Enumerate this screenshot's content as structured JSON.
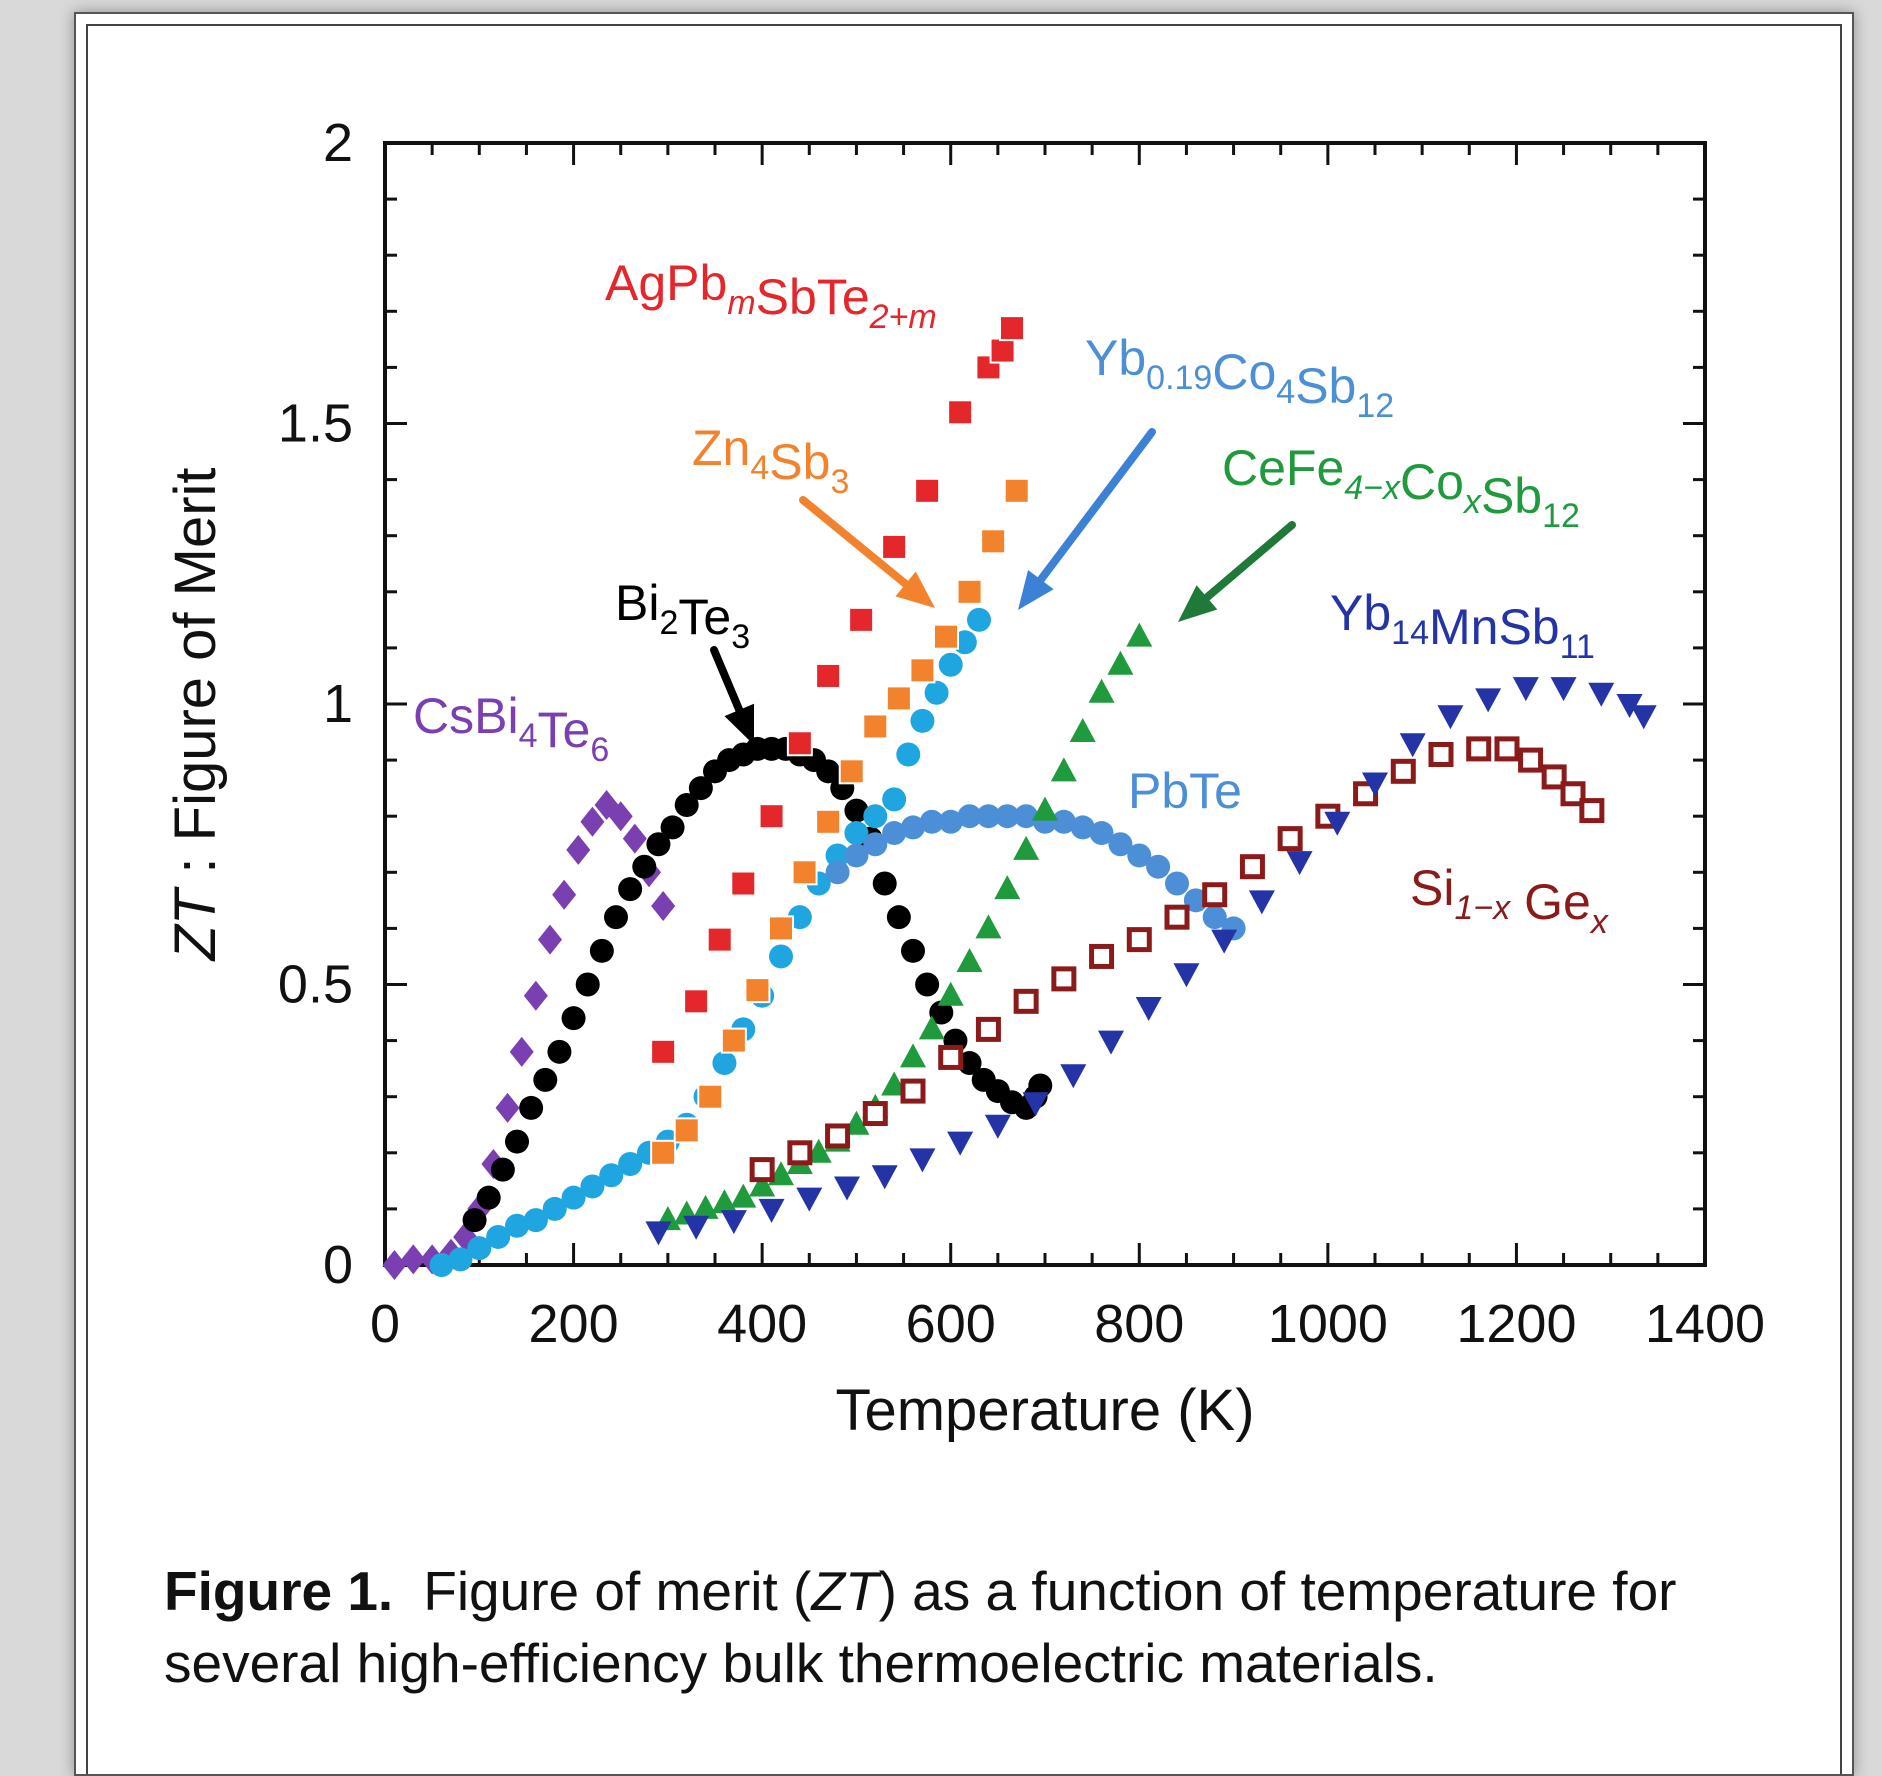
{
  "caption": {
    "label": "Figure 1.",
    "text_before": "Figure of merit (",
    "italic": "ZT",
    "text_after": ") as a function of temperature for several high-efficiency bulk thermoelectric materials."
  },
  "chart_data": {
    "type": "scatter",
    "xlabel": "Temperature (K)",
    "ylabel_italic": "ZT",
    "ylabel_rest": " : Figure of Merit",
    "xlim": [
      0,
      1400
    ],
    "ylim": [
      0,
      2
    ],
    "xticks": [
      "0",
      "200",
      "400",
      "600",
      "800",
      "1000",
      "1200",
      "1400"
    ],
    "yticks": [
      "0",
      "0.5",
      "1",
      "1.5",
      "2"
    ],
    "grid": false,
    "series": [
      {
        "color": "#7a3fb0",
        "marker": "diamond",
        "label_parts": [
          [
            "CsBi",
            ""
          ],
          [
            "4",
            "sub"
          ],
          [
            "Te",
            ""
          ],
          [
            "6",
            "sub"
          ]
        ],
        "points": [
          [
            10,
            0
          ],
          [
            30,
            0.01
          ],
          [
            50,
            0.01
          ],
          [
            70,
            0.02
          ],
          [
            85,
            0.05
          ],
          [
            100,
            0.1
          ],
          [
            115,
            0.18
          ],
          [
            130,
            0.28
          ],
          [
            145,
            0.38
          ],
          [
            160,
            0.48
          ],
          [
            175,
            0.58
          ],
          [
            190,
            0.66
          ],
          [
            205,
            0.74
          ],
          [
            220,
            0.79
          ],
          [
            235,
            0.82
          ],
          [
            250,
            0.8
          ],
          [
            265,
            0.76
          ],
          [
            280,
            0.7
          ],
          [
            295,
            0.64
          ]
        ]
      },
      {
        "color": "#000000",
        "marker": "circle",
        "label_parts": [
          [
            "Bi",
            ""
          ],
          [
            "2",
            "sub"
          ],
          [
            "Te",
            ""
          ],
          [
            "3",
            "sub"
          ]
        ],
        "points": [
          [
            95,
            0.08
          ],
          [
            110,
            0.12
          ],
          [
            125,
            0.17
          ],
          [
            140,
            0.22
          ],
          [
            155,
            0.28
          ],
          [
            170,
            0.33
          ],
          [
            185,
            0.38
          ],
          [
            200,
            0.44
          ],
          [
            215,
            0.5
          ],
          [
            230,
            0.56
          ],
          [
            245,
            0.62
          ],
          [
            260,
            0.67
          ],
          [
            275,
            0.71
          ],
          [
            290,
            0.75
          ],
          [
            305,
            0.78
          ],
          [
            320,
            0.82
          ],
          [
            335,
            0.85
          ],
          [
            350,
            0.88
          ],
          [
            365,
            0.9
          ],
          [
            380,
            0.91
          ],
          [
            395,
            0.92
          ],
          [
            410,
            0.92
          ],
          [
            425,
            0.92
          ],
          [
            440,
            0.91
          ],
          [
            455,
            0.9
          ],
          [
            470,
            0.88
          ],
          [
            485,
            0.85
          ],
          [
            500,
            0.81
          ],
          [
            515,
            0.76
          ],
          [
            530,
            0.68
          ],
          [
            545,
            0.62
          ],
          [
            560,
            0.56
          ],
          [
            575,
            0.5
          ],
          [
            590,
            0.45
          ],
          [
            605,
            0.4
          ],
          [
            620,
            0.36
          ],
          [
            635,
            0.33
          ],
          [
            650,
            0.31
          ],
          [
            665,
            0.29
          ],
          [
            680,
            0.28
          ],
          [
            690,
            0.3
          ],
          [
            695,
            0.32
          ]
        ]
      },
      {
        "color": "#1fa5e0",
        "marker": "circle",
        "label_parts": [],
        "points": [
          [
            60,
            0
          ],
          [
            80,
            0.01
          ],
          [
            100,
            0.03
          ],
          [
            120,
            0.05
          ],
          [
            140,
            0.07
          ],
          [
            160,
            0.08
          ],
          [
            180,
            0.1
          ],
          [
            200,
            0.12
          ],
          [
            220,
            0.14
          ],
          [
            240,
            0.16
          ],
          [
            260,
            0.18
          ],
          [
            280,
            0.2
          ],
          [
            300,
            0.22
          ],
          [
            320,
            0.25
          ],
          [
            340,
            0.3
          ],
          [
            360,
            0.36
          ],
          [
            380,
            0.42
          ],
          [
            400,
            0.48
          ],
          [
            420,
            0.55
          ],
          [
            440,
            0.62
          ],
          [
            460,
            0.68
          ],
          [
            480,
            0.73
          ],
          [
            500,
            0.77
          ],
          [
            520,
            0.8
          ],
          [
            540,
            0.83
          ],
          [
            555,
            0.91
          ],
          [
            570,
            0.97
          ],
          [
            585,
            1.02
          ],
          [
            600,
            1.07
          ],
          [
            615,
            1.11
          ],
          [
            630,
            1.15
          ]
        ]
      },
      {
        "color": "#e3272a",
        "marker": "square",
        "label_parts": [
          [
            "AgPb",
            ""
          ],
          [
            "m",
            "subi"
          ],
          [
            "SbTe",
            ""
          ],
          [
            "2+m",
            "subi"
          ]
        ],
        "points": [
          [
            295,
            0.38
          ],
          [
            330,
            0.47
          ],
          [
            355,
            0.58
          ],
          [
            380,
            0.68
          ],
          [
            410,
            0.8
          ],
          [
            440,
            0.93
          ],
          [
            470,
            1.05
          ],
          [
            505,
            1.15
          ],
          [
            540,
            1.28
          ],
          [
            575,
            1.38
          ],
          [
            610,
            1.52
          ],
          [
            640,
            1.6
          ],
          [
            655,
            1.63
          ],
          [
            665,
            1.67
          ]
        ]
      },
      {
        "color": "#f2822c",
        "marker": "square",
        "label_parts": [
          [
            "Zn",
            ""
          ],
          [
            "4",
            "sub"
          ],
          [
            "Sb",
            ""
          ],
          [
            "3",
            "sub"
          ]
        ],
        "points": [
          [
            295,
            0.2
          ],
          [
            320,
            0.24
          ],
          [
            345,
            0.3
          ],
          [
            370,
            0.4
          ],
          [
            395,
            0.49
          ],
          [
            420,
            0.6
          ],
          [
            445,
            0.7
          ],
          [
            470,
            0.79
          ],
          [
            495,
            0.88
          ],
          [
            520,
            0.96
          ],
          [
            545,
            1.01
          ],
          [
            570,
            1.06
          ],
          [
            595,
            1.12
          ],
          [
            620,
            1.2
          ],
          [
            645,
            1.29
          ],
          [
            670,
            1.38
          ]
        ]
      },
      {
        "color": "#4c8fd6",
        "marker": "circle",
        "label_parts": [
          [
            "PbTe",
            ""
          ]
        ],
        "points": [
          [
            480,
            0.7
          ],
          [
            500,
            0.73
          ],
          [
            520,
            0.75
          ],
          [
            540,
            0.77
          ],
          [
            560,
            0.78
          ],
          [
            580,
            0.79
          ],
          [
            600,
            0.79
          ],
          [
            620,
            0.8
          ],
          [
            640,
            0.8
          ],
          [
            660,
            0.8
          ],
          [
            680,
            0.8
          ],
          [
            700,
            0.79
          ],
          [
            720,
            0.79
          ],
          [
            740,
            0.78
          ],
          [
            760,
            0.77
          ],
          [
            780,
            0.75
          ],
          [
            800,
            0.73
          ],
          [
            820,
            0.71
          ],
          [
            840,
            0.68
          ],
          [
            860,
            0.65
          ],
          [
            880,
            0.62
          ],
          [
            900,
            0.6
          ]
        ]
      },
      {
        "color": "#1f9a3d",
        "marker": "triangle-up",
        "label_parts": [
          [
            "CeFe",
            ""
          ],
          [
            "4−x",
            "subi"
          ],
          [
            "Co",
            ""
          ],
          [
            "x",
            "subi"
          ],
          [
            "Sb",
            ""
          ],
          [
            "12",
            "sub"
          ]
        ],
        "points": [
          [
            300,
            0.08
          ],
          [
            320,
            0.09
          ],
          [
            340,
            0.1
          ],
          [
            360,
            0.11
          ],
          [
            380,
            0.12
          ],
          [
            400,
            0.14
          ],
          [
            420,
            0.16
          ],
          [
            440,
            0.18
          ],
          [
            460,
            0.2
          ],
          [
            480,
            0.22
          ],
          [
            500,
            0.25
          ],
          [
            520,
            0.28
          ],
          [
            540,
            0.32
          ],
          [
            560,
            0.37
          ],
          [
            580,
            0.42
          ],
          [
            600,
            0.48
          ],
          [
            620,
            0.54
          ],
          [
            640,
            0.6
          ],
          [
            660,
            0.67
          ],
          [
            680,
            0.74
          ],
          [
            700,
            0.81
          ],
          [
            720,
            0.88
          ],
          [
            740,
            0.95
          ],
          [
            760,
            1.02
          ],
          [
            780,
            1.07
          ],
          [
            800,
            1.12
          ]
        ]
      },
      {
        "color": "#8b1a1a",
        "marker": "square-open",
        "label_parts": [
          [
            "Si",
            ""
          ],
          [
            "1−x",
            "subi"
          ],
          [
            " Ge",
            ""
          ],
          [
            "x",
            "subi"
          ]
        ],
        "points": [
          [
            400,
            0.17
          ],
          [
            440,
            0.2
          ],
          [
            480,
            0.23
          ],
          [
            520,
            0.27
          ],
          [
            560,
            0.31
          ],
          [
            600,
            0.37
          ],
          [
            640,
            0.42
          ],
          [
            680,
            0.47
          ],
          [
            720,
            0.51
          ],
          [
            760,
            0.55
          ],
          [
            800,
            0.58
          ],
          [
            840,
            0.62
          ],
          [
            880,
            0.66
          ],
          [
            920,
            0.71
          ],
          [
            960,
            0.76
          ],
          [
            1000,
            0.8
          ],
          [
            1040,
            0.84
          ],
          [
            1080,
            0.88
          ],
          [
            1120,
            0.91
          ],
          [
            1160,
            0.92
          ],
          [
            1190,
            0.92
          ],
          [
            1215,
            0.9
          ],
          [
            1240,
            0.87
          ],
          [
            1260,
            0.84
          ],
          [
            1280,
            0.81
          ]
        ]
      },
      {
        "color": "#2433a6",
        "marker": "triangle-down",
        "label_parts": [
          [
            "Yb",
            ""
          ],
          [
            "14",
            "sub"
          ],
          [
            "MnSb",
            ""
          ],
          [
            "11",
            "sub"
          ]
        ],
        "points": [
          [
            290,
            0.06
          ],
          [
            330,
            0.07
          ],
          [
            370,
            0.08
          ],
          [
            410,
            0.1
          ],
          [
            450,
            0.12
          ],
          [
            490,
            0.14
          ],
          [
            530,
            0.16
          ],
          [
            570,
            0.19
          ],
          [
            610,
            0.22
          ],
          [
            650,
            0.25
          ],
          [
            690,
            0.29
          ],
          [
            730,
            0.34
          ],
          [
            770,
            0.4
          ],
          [
            810,
            0.46
          ],
          [
            850,
            0.52
          ],
          [
            890,
            0.58
          ],
          [
            930,
            0.65
          ],
          [
            970,
            0.72
          ],
          [
            1010,
            0.79
          ],
          [
            1050,
            0.86
          ],
          [
            1090,
            0.93
          ],
          [
            1130,
            0.98
          ],
          [
            1170,
            1.01
          ],
          [
            1210,
            1.03
          ],
          [
            1250,
            1.03
          ],
          [
            1290,
            1.02
          ],
          [
            1320,
            1.0
          ],
          [
            1335,
            0.98
          ]
        ]
      }
    ],
    "label_yb019": [
      [
        "Yb",
        ""
      ],
      [
        "0.19",
        "sub"
      ],
      [
        "Co",
        ""
      ],
      [
        "4",
        "sub"
      ],
      [
        "Sb",
        ""
      ],
      [
        "12",
        "sub"
      ]
    ],
    "label_yb019_color": "#4c8fd6"
  }
}
